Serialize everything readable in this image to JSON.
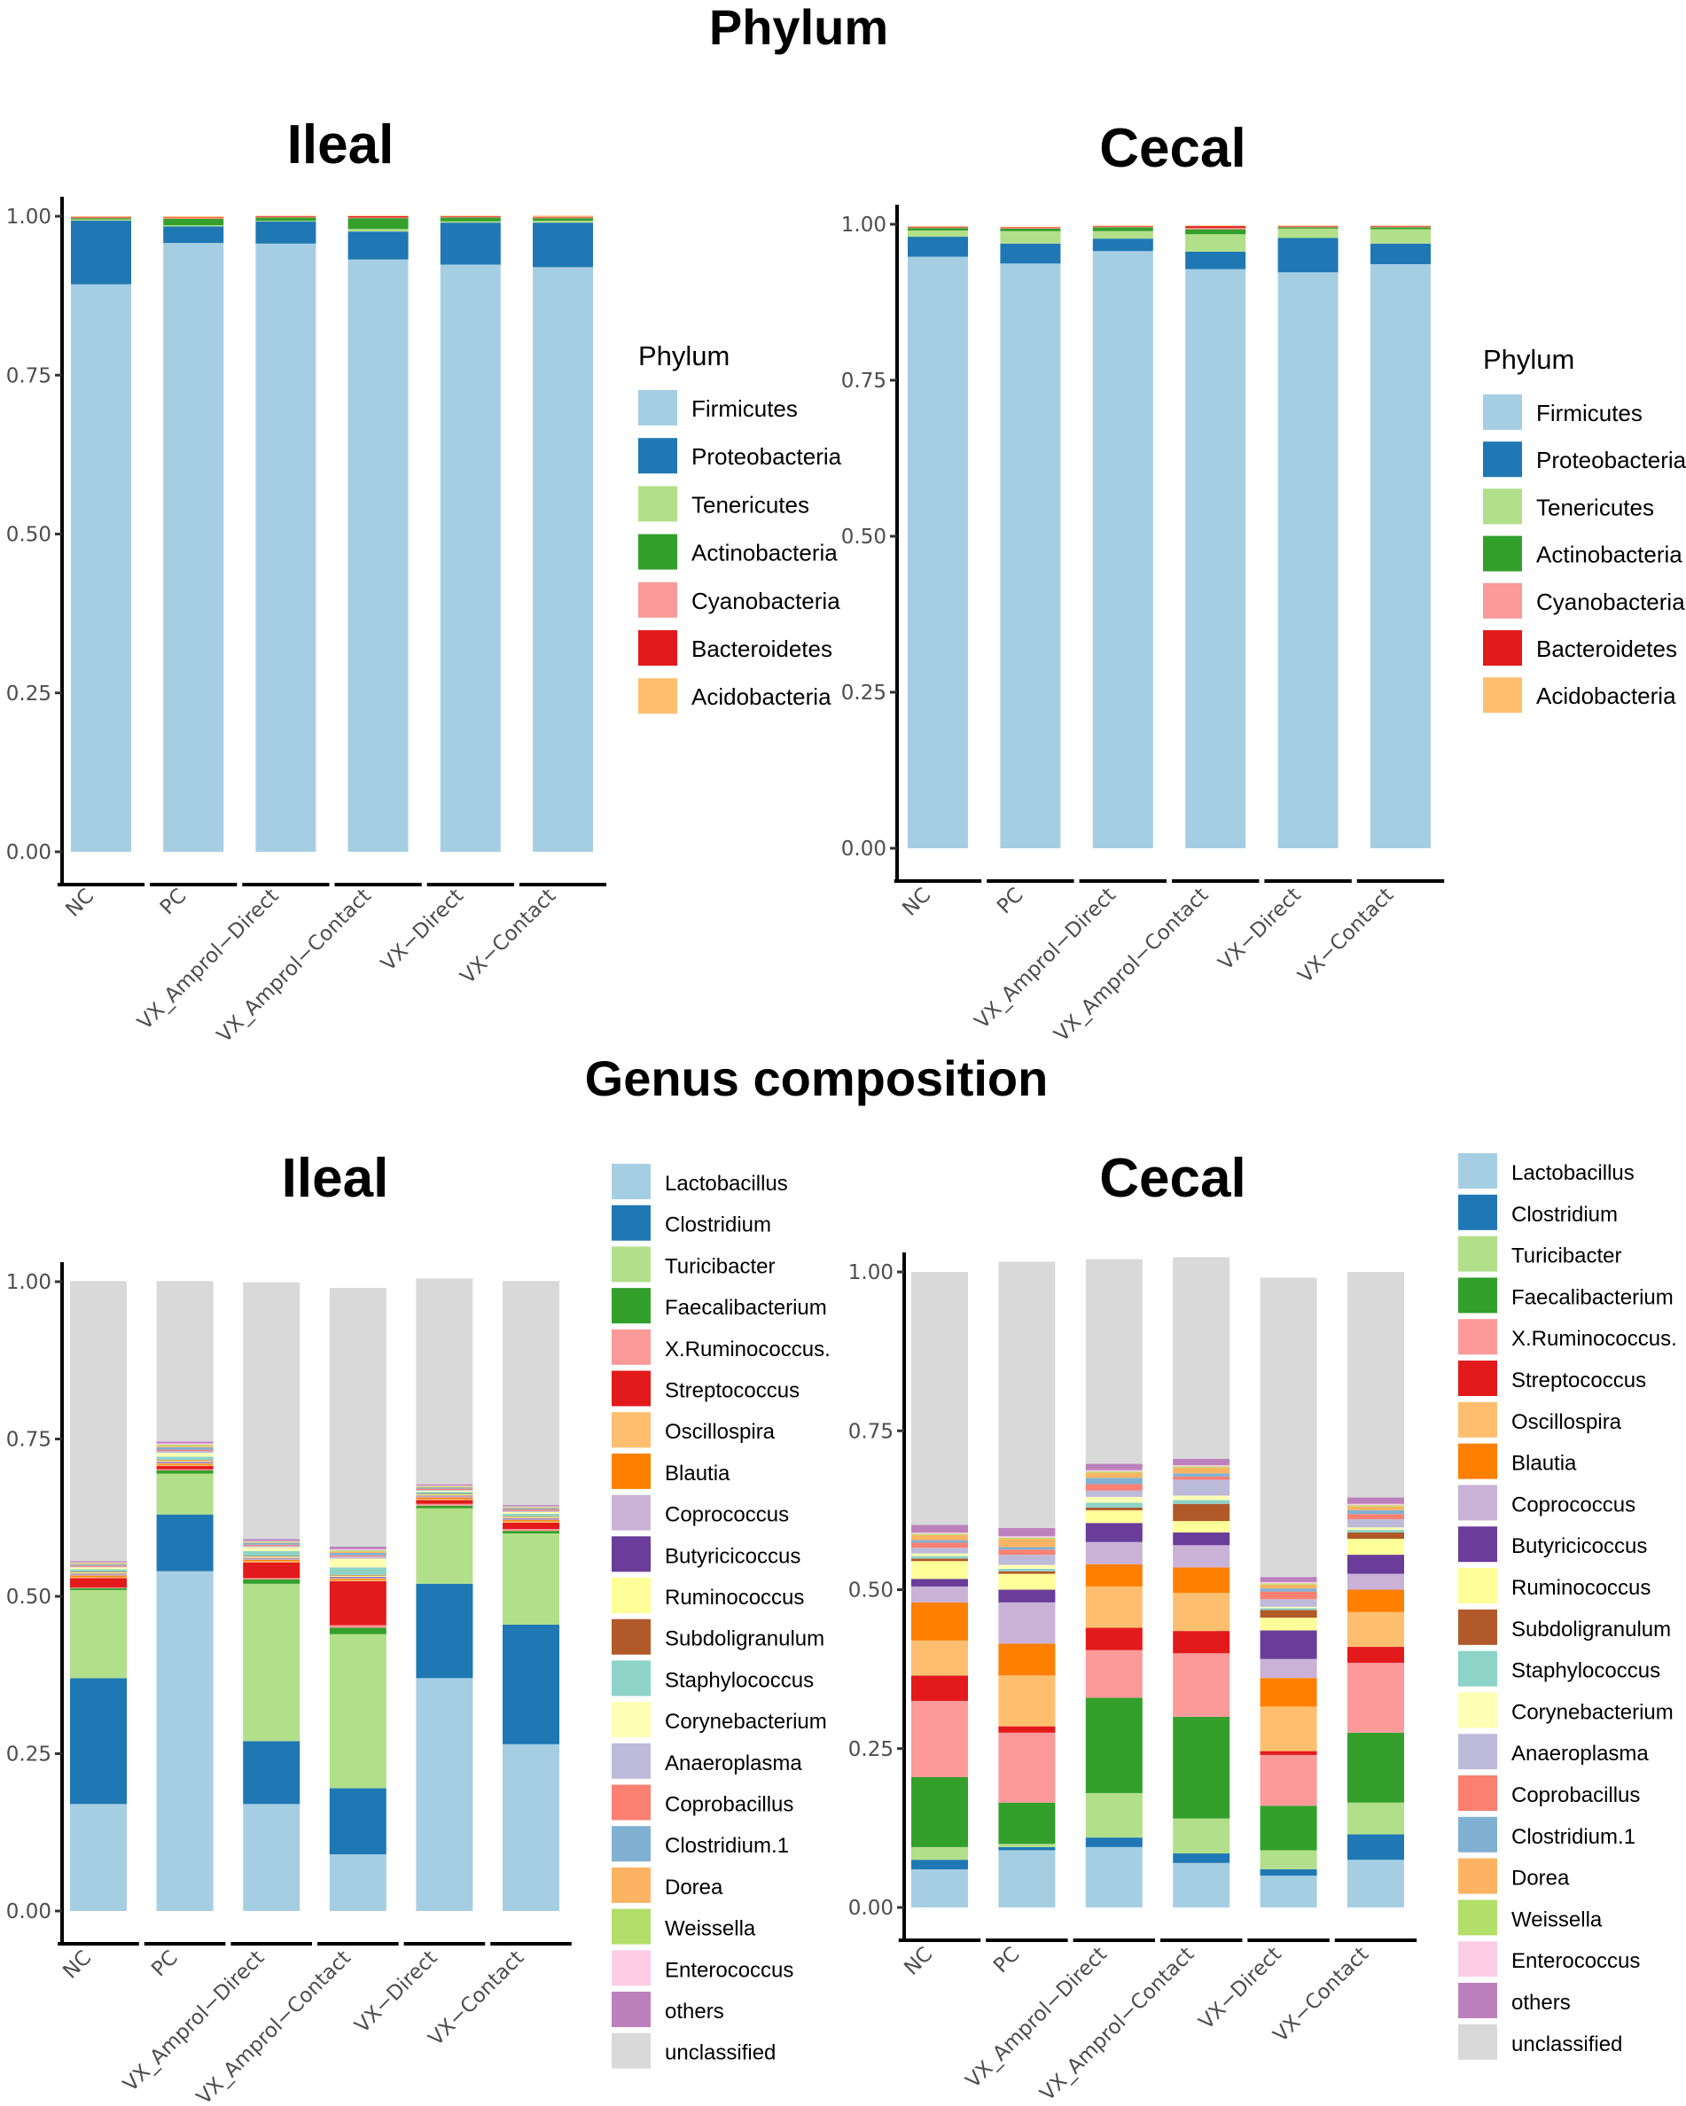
{
  "titles": {
    "phylum": "Phylum",
    "genus": "Genus composition"
  },
  "categories": [
    "NC",
    "PC",
    "VX_Amprol−Direct",
    "VX_Amprol−Contact",
    "VX−Direct",
    "VX−Contact"
  ],
  "y_ticks": [
    "0.00",
    "0.25",
    "0.50",
    "0.75",
    "1.00"
  ],
  "phylum_legend": {
    "title": "Phylum",
    "items": [
      {
        "label": "Firmicutes",
        "color": "#A6CEE3"
      },
      {
        "label": "Proteobacteria",
        "color": "#1F78B4"
      },
      {
        "label": "Tenericutes",
        "color": "#B2DF8A"
      },
      {
        "label": "Actinobacteria",
        "color": "#33A02C"
      },
      {
        "label": "Cyanobacteria",
        "color": "#FB9A99"
      },
      {
        "label": "Bacteroidetes",
        "color": "#E31A1C"
      },
      {
        "label": "Acidobacteria",
        "color": "#FDBF6F"
      }
    ]
  },
  "genus_legend": {
    "items": [
      {
        "label": "Lactobacillus",
        "color": "#A6CEE3"
      },
      {
        "label": "Clostridium",
        "color": "#1F78B4"
      },
      {
        "label": "Turicibacter",
        "color": "#B2DF8A"
      },
      {
        "label": "Faecalibacterium",
        "color": "#33A02C"
      },
      {
        "label": "X.Ruminococcus.",
        "color": "#FB9A99"
      },
      {
        "label": "Streptococcus",
        "color": "#E31A1C"
      },
      {
        "label": "Oscillospira",
        "color": "#FDBF6F"
      },
      {
        "label": "Blautia",
        "color": "#FF7F00"
      },
      {
        "label": "Coprococcus",
        "color": "#CAB2D6"
      },
      {
        "label": "Butyricicoccus",
        "color": "#6A3D9A"
      },
      {
        "label": "Ruminococcus",
        "color": "#FFFF99"
      },
      {
        "label": "Subdoligranulum",
        "color": "#B15928"
      },
      {
        "label": "Staphylococcus",
        "color": "#8DD3C7"
      },
      {
        "label": "Corynebacterium",
        "color": "#FFFFB3"
      },
      {
        "label": "Anaeroplasma",
        "color": "#BEBADA"
      },
      {
        "label": "Coprobacillus",
        "color": "#FB8072"
      },
      {
        "label": "Clostridium.1",
        "color": "#80B1D3"
      },
      {
        "label": "Dorea",
        "color": "#FDB462"
      },
      {
        "label": "Weissella",
        "color": "#B3DE69"
      },
      {
        "label": "Enterococcus",
        "color": "#FCCDE5"
      },
      {
        "label": "others",
        "color": "#BC80BD"
      },
      {
        "label": "unclassified",
        "color": "#D9D9D9"
      }
    ]
  },
  "chart_data": [
    {
      "type": "bar",
      "stacked": true,
      "title": "Ileal",
      "group": "Phylum",
      "categories": [
        "NC",
        "PC",
        "VX_Amprol−Direct",
        "VX_Amprol−Contact",
        "VX−Direct",
        "VX−Contact"
      ],
      "ylim": [
        0,
        1
      ],
      "series": [
        {
          "name": "Firmicutes",
          "values": [
            0.893,
            0.958,
            0.957,
            0.932,
            0.924,
            0.92
          ]
        },
        {
          "name": "Proteobacteria",
          "values": [
            0.1,
            0.026,
            0.035,
            0.044,
            0.066,
            0.07
          ]
        },
        {
          "name": "Tenericutes",
          "values": [
            0.002,
            0.002,
            0.001,
            0.004,
            0.002,
            0.003
          ]
        },
        {
          "name": "Actinobacteria",
          "values": [
            0.002,
            0.01,
            0.005,
            0.017,
            0.006,
            0.004
          ]
        },
        {
          "name": "Cyanobacteria",
          "values": [
            0.001,
            0.001,
            0.001,
            0.001,
            0.001,
            0.001
          ]
        },
        {
          "name": "Bacteroidetes",
          "values": [
            0.001,
            0.001,
            0.001,
            0.002,
            0.001,
            0.001
          ]
        },
        {
          "name": "Acidobacteria",
          "values": [
            0.001,
            0.002,
            0.001,
            0.001,
            0.001,
            0.002
          ]
        }
      ]
    },
    {
      "type": "bar",
      "stacked": true,
      "title": "Cecal",
      "group": "Phylum",
      "categories": [
        "NC",
        "PC",
        "VX_Amprol−Direct",
        "VX_Amprol−Contact",
        "VX−Direct",
        "VX−Contact"
      ],
      "ylim": [
        0,
        1
      ],
      "series": [
        {
          "name": "Firmicutes",
          "values": [
            0.948,
            0.937,
            0.957,
            0.928,
            0.923,
            0.936
          ]
        },
        {
          "name": "Proteobacteria",
          "values": [
            0.032,
            0.032,
            0.02,
            0.028,
            0.055,
            0.033
          ]
        },
        {
          "name": "Tenericutes",
          "values": [
            0.01,
            0.02,
            0.012,
            0.028,
            0.015,
            0.023
          ]
        },
        {
          "name": "Actinobacteria",
          "values": [
            0.004,
            0.004,
            0.006,
            0.008,
            0.002,
            0.003
          ]
        },
        {
          "name": "Cyanobacteria",
          "values": [
            0.001,
            0.001,
            0.001,
            0.002,
            0.001,
            0.001
          ]
        },
        {
          "name": "Bacteroidetes",
          "values": [
            0.001,
            0.001,
            0.001,
            0.003,
            0.001,
            0.001
          ]
        },
        {
          "name": "Acidobacteria",
          "values": [
            0.001,
            0.001,
            0.001,
            0.001,
            0.001,
            0.001
          ]
        }
      ]
    },
    {
      "type": "bar",
      "stacked": true,
      "title": "Ileal",
      "group": "Genus composition",
      "categories": [
        "NC",
        "PC",
        "VX_Amprol−Direct",
        "VX_Amprol−Contact",
        "VX−Direct",
        "VX−Contact"
      ],
      "ylim": [
        0,
        1
      ],
      "series": [
        {
          "name": "Lactobacillus",
          "values": [
            0.17,
            0.54,
            0.17,
            0.09,
            0.37,
            0.265
          ]
        },
        {
          "name": "Clostridium",
          "values": [
            0.2,
            0.09,
            0.1,
            0.105,
            0.15,
            0.19
          ]
        },
        {
          "name": "Turicibacter",
          "values": [
            0.14,
            0.065,
            0.25,
            0.245,
            0.12,
            0.145
          ]
        },
        {
          "name": "Faecalibacterium",
          "values": [
            0.003,
            0.005,
            0.007,
            0.01,
            0.004,
            0.004
          ]
        },
        {
          "name": "X.Ruminococcus.",
          "values": [
            0.001,
            0.002,
            0.002,
            0.004,
            0.003,
            0.003
          ]
        },
        {
          "name": "Streptococcus",
          "values": [
            0.015,
            0.005,
            0.025,
            0.07,
            0.006,
            0.01
          ]
        },
        {
          "name": "Oscillospira",
          "values": [
            0.002,
            0.002,
            0.002,
            0.002,
            0.002,
            0.002
          ]
        },
        {
          "name": "Blautia",
          "values": [
            0.002,
            0.002,
            0.002,
            0.002,
            0.002,
            0.002
          ]
        },
        {
          "name": "Coprococcus",
          "values": [
            0.002,
            0.002,
            0.002,
            0.002,
            0.002,
            0.002
          ]
        },
        {
          "name": "Butyricicoccus",
          "values": [
            0.001,
            0.001,
            0.001,
            0.001,
            0.001,
            0.001
          ]
        },
        {
          "name": "Ruminococcus",
          "values": [
            0.002,
            0.002,
            0.002,
            0.002,
            0.002,
            0.002
          ]
        },
        {
          "name": "Subdoligranulum",
          "values": [
            0.001,
            0.001,
            0.001,
            0.001,
            0.001,
            0.001
          ]
        },
        {
          "name": "Staphylococcus",
          "values": [
            0.004,
            0.005,
            0.008,
            0.012,
            0.003,
            0.004
          ]
        },
        {
          "name": "Corynebacterium",
          "values": [
            0.003,
            0.006,
            0.006,
            0.014,
            0.002,
            0.003
          ]
        },
        {
          "name": "Anaeroplasma",
          "values": [
            0.001,
            0.003,
            0.002,
            0.003,
            0.001,
            0.002
          ]
        },
        {
          "name": "Coprobacillus",
          "values": [
            0.002,
            0.002,
            0.002,
            0.002,
            0.002,
            0.002
          ]
        },
        {
          "name": "Clostridium.1",
          "values": [
            0.002,
            0.004,
            0.003,
            0.004,
            0.002,
            0.002
          ]
        },
        {
          "name": "Dorea",
          "values": [
            0.001,
            0.002,
            0.001,
            0.002,
            0.001,
            0.001
          ]
        },
        {
          "name": "Weissella",
          "values": [
            0.001,
            0.002,
            0.001,
            0.002,
            0.001,
            0.001
          ]
        },
        {
          "name": "Enterococcus",
          "values": [
            0.001,
            0.002,
            0.001,
            0.002,
            0.001,
            0.001
          ]
        },
        {
          "name": "others",
          "values": [
            0.002,
            0.003,
            0.003,
            0.004,
            0.002,
            0.002
          ]
        },
        {
          "name": "unclassified",
          "values": [
            0.445,
            0.255,
            0.408,
            0.411,
            0.327,
            0.356
          ]
        }
      ]
    },
    {
      "type": "bar",
      "stacked": true,
      "title": "Cecal",
      "group": "Genus composition",
      "categories": [
        "NC",
        "PC",
        "VX_Amprol−Direct",
        "VX_Amprol−Contact",
        "VX−Direct",
        "VX−Contact"
      ],
      "ylim": [
        0,
        1
      ],
      "series": [
        {
          "name": "Lactobacillus",
          "values": [
            0.06,
            0.09,
            0.095,
            0.07,
            0.05,
            0.075
          ]
        },
        {
          "name": "Clostridium",
          "values": [
            0.015,
            0.005,
            0.015,
            0.015,
            0.01,
            0.04
          ]
        },
        {
          "name": "Turicibacter",
          "values": [
            0.02,
            0.005,
            0.07,
            0.055,
            0.03,
            0.05
          ]
        },
        {
          "name": "Faecalibacterium",
          "values": [
            0.11,
            0.065,
            0.15,
            0.16,
            0.07,
            0.11
          ]
        },
        {
          "name": "X.Ruminococcus.",
          "values": [
            0.12,
            0.11,
            0.075,
            0.1,
            0.08,
            0.11
          ]
        },
        {
          "name": "Streptococcus",
          "values": [
            0.04,
            0.01,
            0.035,
            0.035,
            0.006,
            0.025
          ]
        },
        {
          "name": "Oscillospira",
          "values": [
            0.055,
            0.08,
            0.065,
            0.06,
            0.07,
            0.055
          ]
        },
        {
          "name": "Blautia",
          "values": [
            0.06,
            0.05,
            0.035,
            0.04,
            0.045,
            0.035
          ]
        },
        {
          "name": "Coprococcus",
          "values": [
            0.025,
            0.065,
            0.035,
            0.035,
            0.03,
            0.025
          ]
        },
        {
          "name": "Butyricicoccus",
          "values": [
            0.012,
            0.02,
            0.03,
            0.02,
            0.045,
            0.03
          ]
        },
        {
          "name": "Ruminococcus",
          "values": [
            0.028,
            0.025,
            0.02,
            0.018,
            0.02,
            0.025
          ]
        },
        {
          "name": "Subdoligranulum",
          "values": [
            0.004,
            0.004,
            0.004,
            0.027,
            0.012,
            0.01
          ]
        },
        {
          "name": "Staphylococcus",
          "values": [
            0.004,
            0.004,
            0.008,
            0.006,
            0.003,
            0.004
          ]
        },
        {
          "name": "Corynebacterium",
          "values": [
            0.004,
            0.006,
            0.009,
            0.007,
            0.002,
            0.004
          ]
        },
        {
          "name": "Anaeroplasma",
          "values": [
            0.009,
            0.016,
            0.01,
            0.025,
            0.012,
            0.013
          ]
        },
        {
          "name": "Coprobacillus",
          "values": [
            0.008,
            0.008,
            0.01,
            0.005,
            0.012,
            0.008
          ]
        },
        {
          "name": "Clostridium.1",
          "values": [
            0.004,
            0.004,
            0.01,
            0.005,
            0.005,
            0.006
          ]
        },
        {
          "name": "Dorea",
          "values": [
            0.008,
            0.013,
            0.008,
            0.009,
            0.006,
            0.006
          ]
        },
        {
          "name": "Weissella",
          "values": [
            0.002,
            0.002,
            0.002,
            0.002,
            0.002,
            0.002
          ]
        },
        {
          "name": "Enterococcus",
          "values": [
            0.002,
            0.002,
            0.002,
            0.002,
            0.002,
            0.002
          ]
        },
        {
          "name": "others",
          "values": [
            0.012,
            0.013,
            0.01,
            0.01,
            0.008,
            0.01
          ]
        },
        {
          "name": "unclassified",
          "values": [
            0.398,
            0.419,
            0.322,
            0.317,
            0.471,
            0.355
          ]
        }
      ]
    }
  ]
}
